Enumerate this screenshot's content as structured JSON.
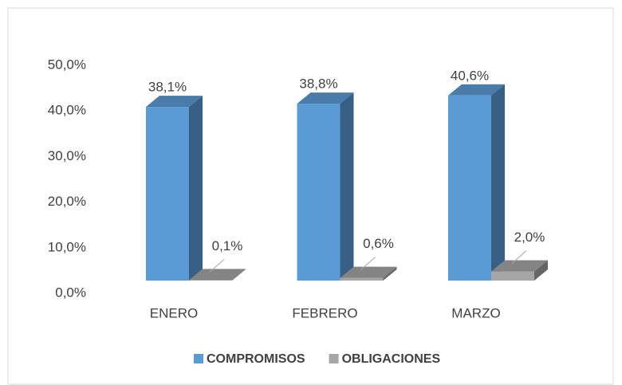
{
  "chart_data": {
    "type": "bar3d",
    "categories": [
      "ENERO",
      "FEBRERO",
      "MARZO"
    ],
    "series": [
      {
        "name": "COMPROMISOS",
        "color": "#5b9bd5",
        "values": [
          38.1,
          38.8,
          40.6
        ],
        "value_labels": [
          "38,1%",
          "38,8%",
          "40,6%"
        ]
      },
      {
        "name": "OBLIGACIONES",
        "color": "#a5a5a5",
        "values": [
          0.1,
          0.6,
          2.0
        ],
        "value_labels": [
          "0,1%",
          "0,6%",
          "2,0%"
        ]
      }
    ],
    "ylim": [
      0,
      50
    ],
    "yticks": [
      {
        "value": 0,
        "label": "0,0%"
      },
      {
        "value": 10,
        "label": "10,0%"
      },
      {
        "value": 20,
        "label": "20,0%"
      },
      {
        "value": 30,
        "label": "30,0%"
      },
      {
        "value": 40,
        "label": "40,0%"
      },
      {
        "value": 50,
        "label": "50,0%"
      }
    ],
    "grid": false,
    "legend": "bottom"
  }
}
